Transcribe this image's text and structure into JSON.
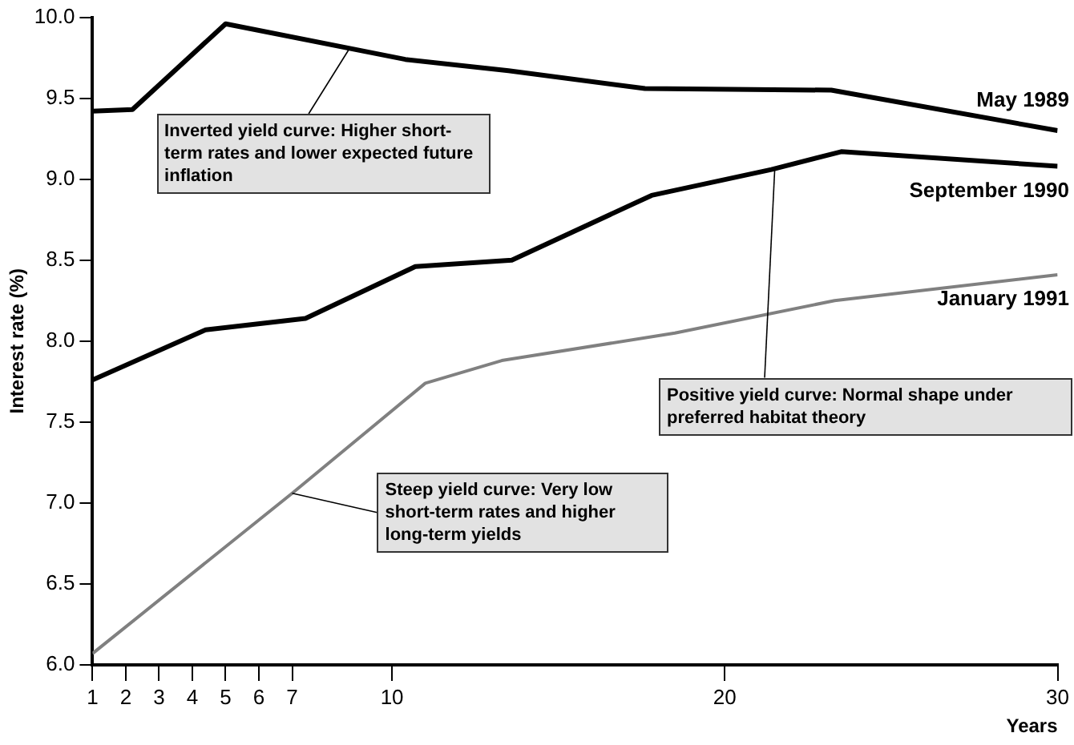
{
  "chart_data": {
    "type": "line",
    "xlabel": "Years",
    "ylabel": "Interest rate (%)",
    "xlim": [
      1,
      30
    ],
    "xticks": [
      1,
      2,
      3,
      4,
      5,
      6,
      7,
      10,
      20,
      30
    ],
    "ylim": [
      6,
      10
    ],
    "yticks": [
      {
        "value": 6,
        "label": "6.0"
      },
      {
        "value": 6.5,
        "label": "6.5"
      },
      {
        "value": 7,
        "label": "7.0"
      },
      {
        "value": 7.5,
        "label": "7.5"
      },
      {
        "value": 8,
        "label": "8.0"
      },
      {
        "value": 8.5,
        "label": "8.5"
      },
      {
        "value": 9,
        "label": "9.0"
      },
      {
        "value": 9.5,
        "label": "9.5"
      },
      {
        "value": 10,
        "label": "10.0"
      }
    ],
    "grid": false,
    "legend": false,
    "marker": "none",
    "line_style": "solid",
    "series": [
      {
        "name": "May 1989",
        "color": "#000000",
        "x": [
          1,
          2.2,
          5,
          10.4,
          13.5,
          17.6,
          23.2,
          30
        ],
        "values": [
          9.42,
          9.43,
          9.96,
          9.74,
          9.67,
          9.56,
          9.55,
          9.3
        ]
      },
      {
        "name": "September 1990",
        "color": "#000000",
        "x": [
          1,
          4.4,
          7.4,
          10.7,
          13.6,
          17.8,
          21.4,
          23.5,
          30
        ],
        "values": [
          7.76,
          8.07,
          8.14,
          8.46,
          8.5,
          8.9,
          9.06,
          9.17,
          9.08
        ]
      },
      {
        "name": "January 1991",
        "color": "#808080",
        "x": [
          1,
          7,
          11,
          13.3,
          18.5,
          23.3,
          30
        ],
        "values": [
          6.07,
          7.06,
          7.74,
          7.88,
          8.05,
          8.25,
          8.41
        ]
      }
    ],
    "annotations": [
      {
        "text": "Inverted yield curve:  Higher short-term rates and lower expected future inflation",
        "x": 8.7,
        "y": 9.8
      },
      {
        "text": "Positive yield curve:  Normal shape under preferred habitat theory",
        "x": 21.5,
        "y": 9.06
      },
      {
        "text": "Steep yield curve:  Very low short-term rates and higher long-term yields",
        "x": 7,
        "y": 7.06
      }
    ]
  }
}
